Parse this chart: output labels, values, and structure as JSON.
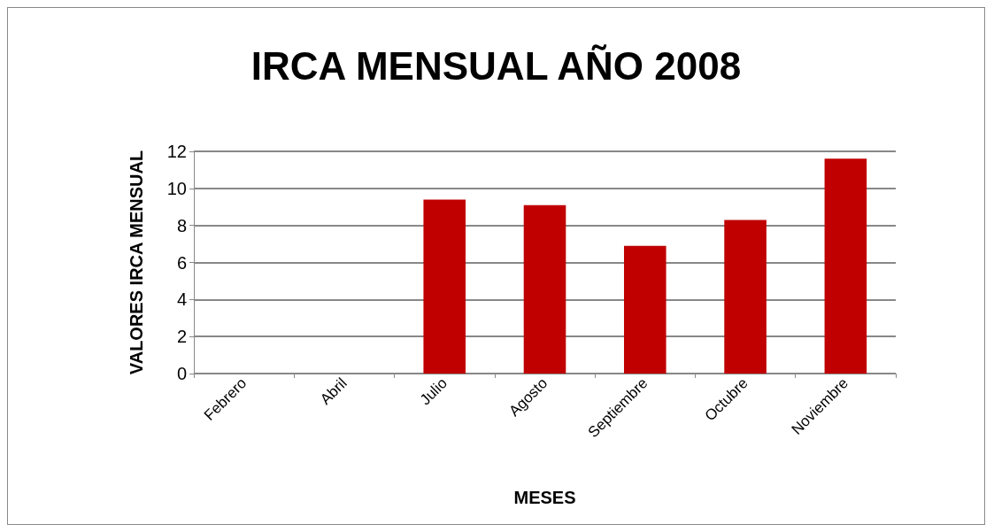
{
  "chart_data": {
    "type": "bar",
    "title": "IRCA MENSUAL AÑO 2008",
    "xlabel": "MESES",
    "ylabel": "VALORES IRCA MENSUAL",
    "categories": [
      "Febrero",
      "Abril",
      "Julio",
      "Agosto",
      "Septiembre",
      "Octubre",
      "Noviembre"
    ],
    "values": [
      0,
      0,
      9.4,
      9.1,
      6.9,
      8.3,
      11.6
    ],
    "colors": [
      "#c0c0c0",
      "#c0c0c0",
      "#c00000",
      "#c00000",
      "#c00000",
      "#c00000",
      "#c00000"
    ],
    "ylim": [
      0,
      12
    ],
    "yticks": [
      0,
      2,
      4,
      6,
      8,
      10,
      12
    ],
    "grid": "y"
  }
}
